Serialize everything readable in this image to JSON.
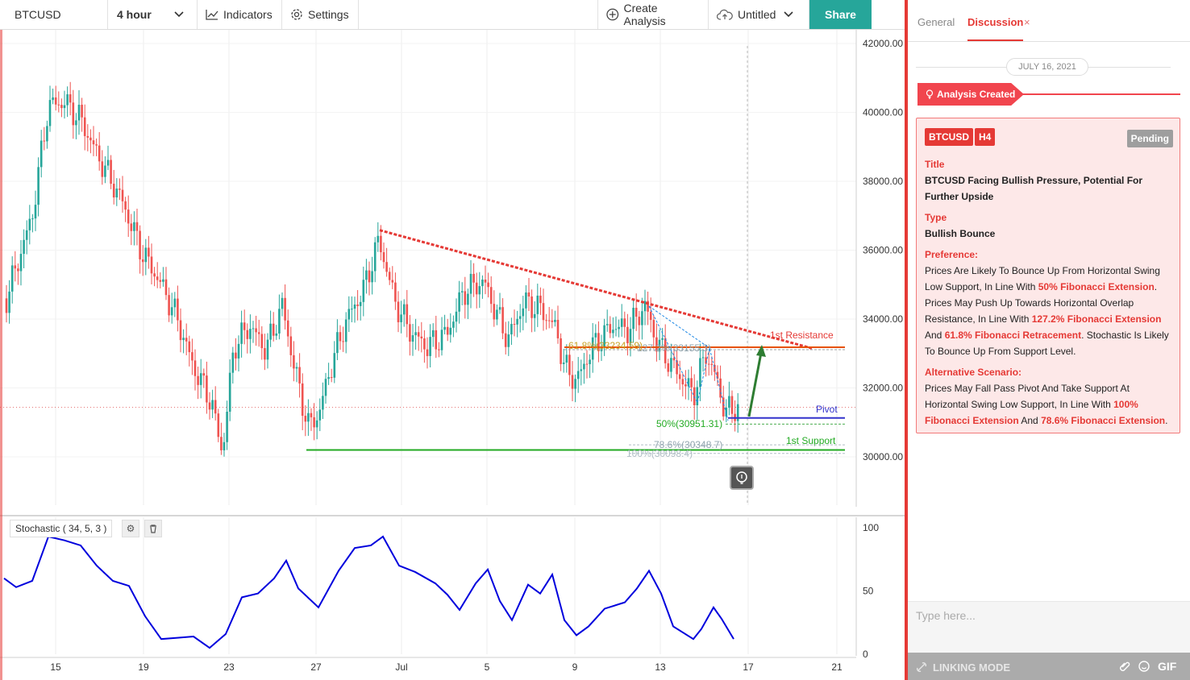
{
  "toolbar": {
    "symbol": "BTCUSD",
    "interval": "4 hour",
    "indicators": "Indicators",
    "settings": "Settings",
    "create_analysis": "Create Analysis",
    "untitled": "Untitled",
    "share": "Share"
  },
  "chart": {
    "price_axis": [
      "42000.00",
      "40000.00",
      "38000.00",
      "36000.00",
      "34000.00",
      "32000.00",
      "30000.00"
    ],
    "stoch_axis": [
      "100",
      "50",
      "0"
    ],
    "time_axis": [
      "15",
      "19",
      "23",
      "27",
      "Jul",
      "5",
      "9",
      "13",
      "17",
      "21"
    ],
    "stoch_label": "Stochastic ( 34, 5, 3 )",
    "annotations": {
      "resistance": "1st Resistance",
      "pivot": "Pivot",
      "support": "1st Support",
      "fib50": "50%(30951.31)",
      "fib786": "78.6%(30348.7)",
      "fib100": "100%(30098.4)",
      "fib618": "61.8%(33234.59)",
      "fib1272": "127.2%(33155.3)"
    },
    "colors": {
      "up": "#26a69a",
      "down": "#ef5350",
      "trendline": "#e53935",
      "stoch": "#0000dd",
      "support": "#22aa22",
      "pivot": "#3333cc"
    }
  },
  "panel": {
    "tabs": {
      "general": "General",
      "discussion": "Discussion",
      "close": "×"
    },
    "date": "JULY 16, 2021",
    "created": "Analysis Created",
    "card": {
      "symbol": "BTCUSD",
      "timeframe": "H4",
      "status": "Pending",
      "title_label": "Title",
      "title": "BTCUSD Facing Bullish Pressure, Potential For Further Upside",
      "type_label": "Type",
      "type": "Bullish Bounce",
      "preference_label": "Preference:",
      "pref_1": "Prices Are Likely To Bounce Up From Horizontal Swing Low Support, In Line With ",
      "pref_hl1": "50% Fibonacci Extension",
      "pref_2": ". Prices May Push Up Towards Horizontal Overlap Resistance, In Line With ",
      "pref_hl2": "127.2% Fibonacci Extension",
      "pref_3": " And ",
      "pref_hl3": "61.8% Fibonacci Retracement",
      "pref_4": ". Stochastic Is Likely To Bounce Up From Support Level.",
      "alt_label": "Alternative Scenario:",
      "alt_1": "Prices May Fall Pass Pivot And Take Support At Horizontal Swing Low Support, In Line With ",
      "alt_hl1": "100% Fibonacci Extension",
      "alt_2": " And ",
      "alt_hl2": "78.6% Fibonacci Extension",
      "alt_3": "."
    },
    "input_placeholder": "Type here...",
    "linking_mode": "LINKING MODE",
    "gif": "GIF"
  }
}
